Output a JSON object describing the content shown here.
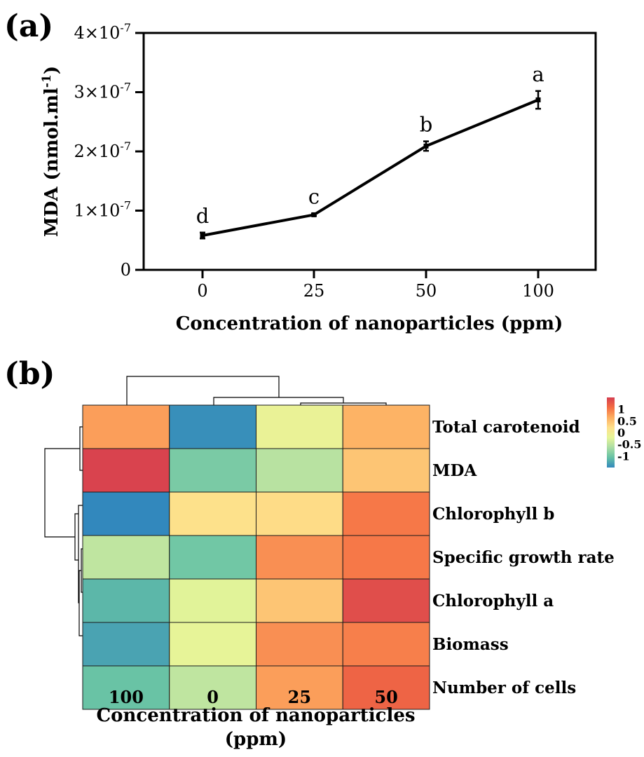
{
  "chart_data": [
    {
      "panel": "(a)",
      "type": "line",
      "xlabel": "Concentration of nanoparticles (ppm)",
      "ylabel_main": "MDA (nmol.ml",
      "ylabel_sup": "-1",
      "ylabel_end": ")",
      "categories": [
        "0",
        "25",
        "50",
        "100"
      ],
      "values": [
        5.8e-08,
        9.3e-08,
        2.09e-07,
        2.87e-07
      ],
      "errors": [
        5e-09,
        2e-09,
        8e-09,
        1.5e-08
      ],
      "significance": [
        "d",
        "c",
        "b",
        "a"
      ],
      "ylim": [
        0,
        4e-07
      ],
      "yticks": [
        {
          "value": 0,
          "label": "0",
          "exp": ""
        },
        {
          "value": 1e-07,
          "label": "1×10",
          "exp": "-7"
        },
        {
          "value": 2e-07,
          "label": "2×10",
          "exp": "-7"
        },
        {
          "value": 3e-07,
          "label": "3×10",
          "exp": "-7"
        },
        {
          "value": 4e-07,
          "label": "4×10",
          "exp": "-7"
        }
      ],
      "grid": false
    },
    {
      "panel": "(b)",
      "type": "heatmap",
      "xlabel_line1": "Concentration of nanoparticles",
      "xlabel_line2": "(ppm)",
      "columns": [
        "100",
        "0",
        "25",
        "50"
      ],
      "rows": [
        "Total carotenoid",
        "MDA",
        "Chlorophyll b",
        "Specific growth rate",
        "Chlorophyll a",
        "Biomass",
        "Number of cells"
      ],
      "values": [
        [
          0.75,
          -1.45,
          -0.15,
          0.6
        ],
        [
          1.45,
          -0.95,
          -0.55,
          0.45
        ],
        [
          -1.5,
          0.2,
          0.25,
          1.0
        ],
        [
          -0.5,
          -1.0,
          0.85,
          1.0
        ],
        [
          -1.15,
          -0.25,
          0.45,
          1.35
        ],
        [
          -1.3,
          -0.2,
          0.85,
          0.95
        ],
        [
          -1.05,
          -0.5,
          0.75,
          1.15
        ]
      ],
      "legend_ticks": [
        {
          "value": 1,
          "label": "1"
        },
        {
          "value": 0.5,
          "label": "0.5"
        },
        {
          "value": 0,
          "label": "0"
        },
        {
          "value": -0.5,
          "label": "-0.5"
        },
        {
          "value": -1,
          "label": "-1"
        }
      ],
      "legend_range": [
        -1.5,
        1.5
      ],
      "color_scale": [
        "#3288bd",
        "#66c2a5",
        "#abdda4",
        "#e6f598",
        "#fee08b",
        "#fdae61",
        "#f46d43",
        "#d53e4f"
      ]
    }
  ]
}
